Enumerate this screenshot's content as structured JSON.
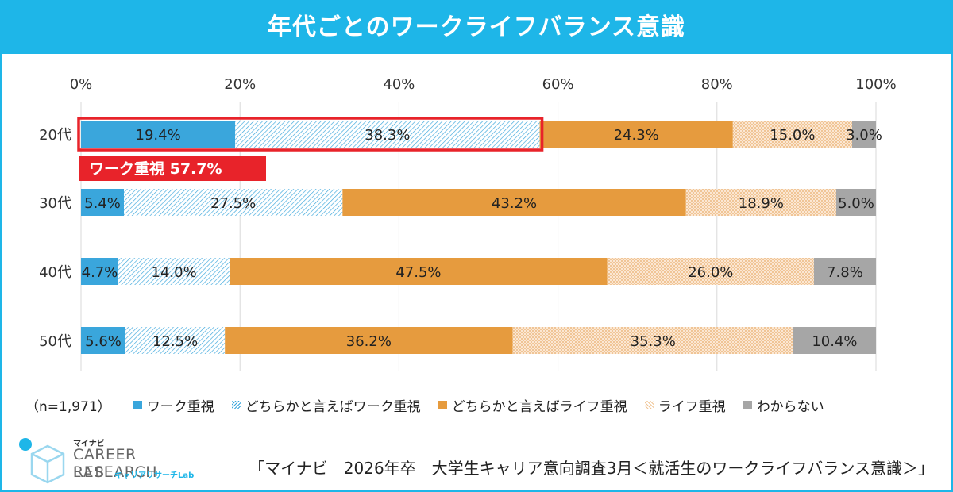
{
  "title": "年代ごとのワークライフバランス意識",
  "sample": "（n=1,971）",
  "highlight_label": "ワーク重視 57.7%",
  "source": "「マイナビ　2026年卒　大学生キャリア意向調査3月＜就活生のワークライフバランス意識＞」",
  "logo": {
    "small": "マイナビ",
    "main": "CAREER RESEARCH",
    "lab": "LAB",
    "sub": "キャリアリサーチLab"
  },
  "colors": {
    "title_bg": "#1eb6e8",
    "work": "#3aa6dc",
    "lean_work": "#3aa6dc",
    "lean_life": "#e69b3e",
    "life": "#f0c596",
    "unknown": "#a6a6a6",
    "highlight": "#e8232a"
  },
  "chart_data": {
    "type": "bar",
    "orientation": "horizontal",
    "stacked": "100%",
    "categories": [
      "20代",
      "30代",
      "40代",
      "50代"
    ],
    "xlim": [
      0,
      100
    ],
    "x_ticks": [
      "0%",
      "20%",
      "40%",
      "60%",
      "80%",
      "100%"
    ],
    "grid": true,
    "legend_position": "bottom",
    "series": [
      {
        "name": "ワーク重視",
        "values": [
          19.4,
          5.4,
          4.7,
          5.6
        ],
        "labels": [
          "19.4%",
          "5.4%",
          "4.7%",
          "5.6%"
        ]
      },
      {
        "name": "どちらかと言えばワーク重視",
        "values": [
          38.3,
          27.5,
          14.0,
          12.5
        ],
        "labels": [
          "38.3%",
          "27.5%",
          "14.0%",
          "12.5%"
        ]
      },
      {
        "name": "どちらかと言えばライフ重視",
        "values": [
          24.3,
          43.2,
          47.5,
          36.2
        ],
        "labels": [
          "24.3%",
          "43.2%",
          "47.5%",
          "36.2%"
        ]
      },
      {
        "name": "ライフ重視",
        "values": [
          15.0,
          18.9,
          26.0,
          35.3
        ],
        "labels": [
          "15.0%",
          "18.9%",
          "26.0%",
          "35.3%"
        ]
      },
      {
        "name": "わからない",
        "values": [
          3.0,
          5.0,
          7.8,
          10.4
        ],
        "labels": [
          "3.0%",
          "5.0%",
          "7.8%",
          "10.4%"
        ]
      }
    ]
  }
}
